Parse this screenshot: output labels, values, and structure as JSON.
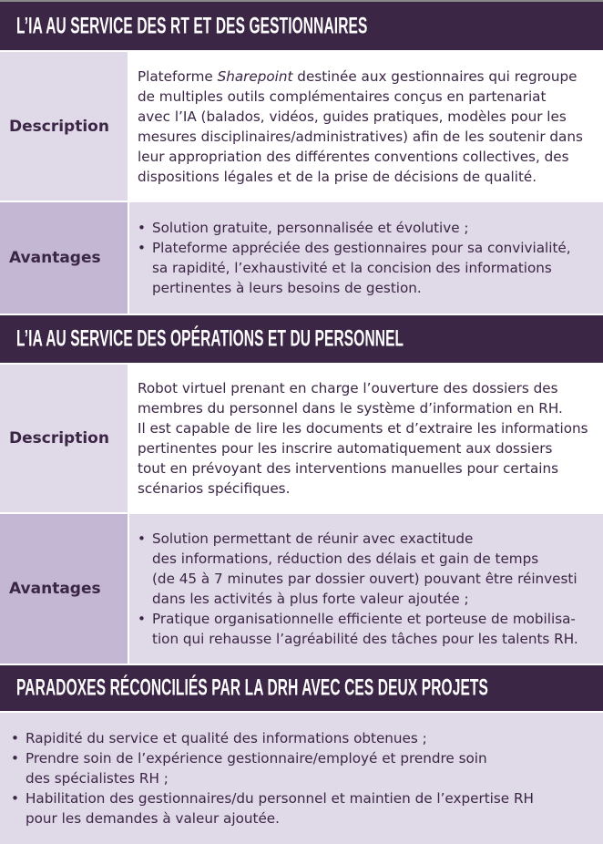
{
  "sections": [
    {
      "title": "L’IA AU SERVICE DES RT ET DES GESTIONNAIRES",
      "description_label": "Description",
      "description_first": [
        "Plateforme ",
        "Sharepoint",
        " destinée aux gestionnaires qui regroupe"
      ],
      "description_lines": [
        "de multiples outils complémentaires conçus en partenariat",
        "avec l’IA (balados, vidéos, guides pratiques, modèles pour les",
        "mesures disciplinaires/administratives) afin de les soutenir dans",
        "leur appropriation des différentes conventions collectives, des",
        "dispositions légales et de la prise de décisions de qualité."
      ],
      "advantages_label": "Avantages",
      "advantages": [
        [
          "Solution gratuite, personnalisée et évolutive ;"
        ],
        [
          "Plateforme appréciée des gestionnaires pour sa convivialité,",
          "sa rapidité, l’exhaustivité et la concision des informations",
          "pertinentes à leurs besoins de gestion."
        ]
      ]
    },
    {
      "title": "L’IA AU SERVICE DES OPÉRATIONS ET DU PERSONNEL",
      "description_label": "Description",
      "description_lines": [
        "Robot virtuel prenant en charge l’ouverture des dossiers des",
        "membres du personnel dans le système d’information en RH.",
        "Il est capable de lire les documents et d’extraire les informations",
        "pertinentes pour les inscrire automatiquement aux dossiers",
        "tout en prévoyant des interventions manuelles pour certains",
        "scénarios spécifiques."
      ],
      "advantages_label": "Avantages",
      "advantages": [
        [
          "Solution permettant de réunir avec exactitude",
          "des informations, réduction des délais et gain de temps",
          "(de 45 à 7 minutes par dossier ouvert) pouvant être réinvesti",
          "dans les activités à plus forte valeur ajoutée ;"
        ],
        [
          "Pratique organisationnelle efficiente et porteuse de mobilisa-",
          "tion qui rehausse l’agréabilité des tâches pour les talents RH."
        ]
      ]
    }
  ],
  "paradoxes": {
    "title": "PARADOXES RÉCONCILIÉS PAR LA DRH AVEC CES DEUX PROJETS",
    "items": [
      [
        "Rapidité du service et qualité des informations obtenues ;"
      ],
      [
        "Prendre soin de l’expérience gestionnaire/employé et prendre soin",
        "des spécialistes RH ;"
      ],
      [
        "Habilitation des gestionnaires/du personnel et maintien de l’expertise RH",
        "pour les demandes à valeur ajoutée."
      ]
    ]
  },
  "colors": {
    "header": "#3b2645",
    "label_light": "#e0d9e8",
    "label_dark": "#c4b7d3",
    "text": "#3b2645"
  }
}
